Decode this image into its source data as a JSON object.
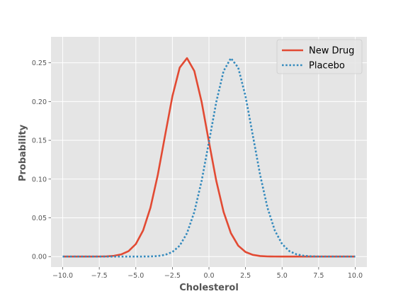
{
  "chart_data": {
    "type": "line",
    "title": "",
    "xlabel": "Cholesterol",
    "ylabel": "Probability",
    "xlim": [
      -10.8,
      10.8
    ],
    "ylim": [
      -0.0135,
      0.2835
    ],
    "x_ticks": [
      -10.0,
      -7.5,
      -5.0,
      -2.5,
      0.0,
      2.5,
      5.0,
      7.5,
      10.0
    ],
    "x_tick_labels": [
      "−10.0",
      "−7.5",
      "−5.0",
      "−2.5",
      "0.0",
      "2.5",
      "5.0",
      "7.5",
      "10.0"
    ],
    "y_ticks": [
      0.0,
      0.05,
      0.1,
      0.15,
      0.2,
      0.25
    ],
    "y_tick_labels": [
      "0.00",
      "0.05",
      "0.10",
      "0.15",
      "0.20",
      "0.25"
    ],
    "grid": true,
    "legend_position": "top-right",
    "x": [
      -10,
      -9.5,
      -9,
      -8.5,
      -8,
      -7.5,
      -7,
      -6.5,
      -6,
      -5.5,
      -5,
      -4.5,
      -4,
      -3.5,
      -3,
      -2.5,
      -2,
      -1.5,
      -1,
      -0.5,
      0,
      0.5,
      1,
      1.5,
      2,
      2.5,
      3,
      3.5,
      4,
      4.5,
      5,
      5.5,
      6,
      6.5,
      7,
      7.5,
      8,
      8.5,
      9,
      9.5,
      10
    ],
    "series": [
      {
        "name": "New Drug",
        "color": "#e24a33",
        "style": "solid",
        "values": [
          0.0,
          0.0,
          0.0,
          0.0,
          0.0,
          0.0001,
          0.0003,
          0.001,
          0.0028,
          0.007,
          0.0162,
          0.0338,
          0.0631,
          0.1052,
          0.1563,
          0.2068,
          0.2438,
          0.256,
          0.2394,
          0.1994,
          0.1479,
          0.0978,
          0.0576,
          0.0302,
          0.0141,
          0.0059,
          0.0022,
          0.0007,
          0.0002,
          0.0001,
          0.0,
          0.0,
          0.0,
          0.0,
          0.0,
          0.0,
          0.0,
          0.0,
          0.0,
          0.0,
          0.0
        ]
      },
      {
        "name": "Placebo",
        "color": "#348abd",
        "style": "dotted",
        "values": [
          0.0,
          0.0,
          0.0,
          0.0,
          0.0,
          0.0,
          0.0,
          0.0,
          0.0,
          0.0,
          0.0,
          0.0001,
          0.0002,
          0.0007,
          0.0022,
          0.0059,
          0.0141,
          0.0302,
          0.0576,
          0.0978,
          0.1479,
          0.1994,
          0.2394,
          0.256,
          0.2438,
          0.2068,
          0.1563,
          0.1052,
          0.0631,
          0.0338,
          0.0162,
          0.007,
          0.0028,
          0.001,
          0.0003,
          0.0001,
          0.0,
          0.0,
          0.0,
          0.0,
          0.0
        ]
      }
    ]
  }
}
